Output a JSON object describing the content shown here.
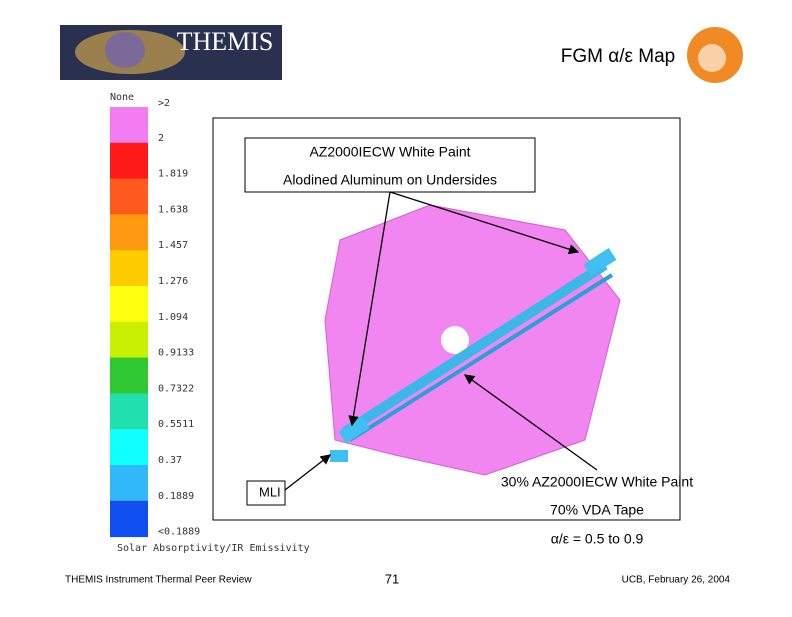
{
  "header": {
    "logo": "THEMIS",
    "title": "FGM α/ε Map"
  },
  "legend": {
    "heading": "None",
    "labels": [
      ">2",
      "2",
      "1.819",
      "1.638",
      "1.457",
      "1.276",
      "1.094",
      "0.9133",
      "0.7322",
      "0.5511",
      "0.37",
      "0.1889",
      "<0.1889"
    ],
    "caption": "Solar Absorptivity/IR Emissivity"
  },
  "callouts": {
    "top_line1": "AZ2000IECW White Paint",
    "top_line2": "Alodined Aluminum on Undersides",
    "mli": "MLI",
    "bottom_line1": "30% AZ2000IECW White Paint",
    "bottom_line2": "70% VDA Tape",
    "bottom_line3": "α/ε = 0.5 to 0.9"
  },
  "footer": {
    "left": "THEMIS Instrument Thermal Peer Review",
    "center": "71",
    "right": "UCB, February 26, 2004"
  }
}
